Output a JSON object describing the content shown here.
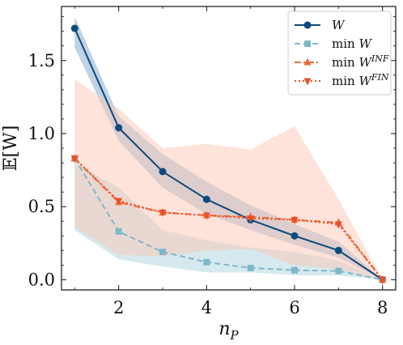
{
  "chart_data": {
    "type": "line",
    "xlabel": "n_P",
    "ylabel": "𝔼[W]",
    "xlim": [
      0.7,
      8.3
    ],
    "ylim": [
      -0.07,
      1.87
    ],
    "x_ticks": [
      2,
      4,
      6,
      8
    ],
    "y_ticks": [
      0.0,
      0.5,
      1.0,
      1.5
    ],
    "x_tick_labels": [
      "2",
      "4",
      "6",
      "8"
    ],
    "y_tick_labels": [
      "0.0",
      "0.5",
      "1.0",
      "1.5"
    ],
    "grid": false,
    "legend_position": "top-right",
    "series": [
      {
        "name": "W",
        "color": "#0d4a7e",
        "marker": "circle",
        "linestyle": "solid",
        "x": [
          1,
          2,
          3,
          4,
          5,
          6,
          7,
          8
        ],
        "y": [
          1.72,
          1.04,
          0.74,
          0.55,
          0.41,
          0.3,
          0.2,
          0.0
        ],
        "band_low": [
          1.59,
          0.95,
          0.63,
          0.45,
          0.34,
          0.24,
          0.15,
          0.0
        ],
        "band_high": [
          1.8,
          1.12,
          0.86,
          0.67,
          0.51,
          0.38,
          0.26,
          0.0
        ],
        "band_color": "#7fa8c9"
      },
      {
        "name": "min W",
        "color": "#7eb8c8",
        "marker": "square",
        "linestyle": "dashed",
        "x": [
          1,
          2,
          3,
          4,
          5,
          6,
          7,
          8
        ],
        "y": [
          0.83,
          0.33,
          0.19,
          0.12,
          0.08,
          0.065,
          0.06,
          0.0
        ],
        "band_low": [
          0.34,
          0.14,
          0.09,
          0.05,
          0.05,
          0.03,
          0.03,
          0.0
        ],
        "band_high": [
          0.8,
          0.63,
          0.34,
          0.27,
          0.22,
          0.19,
          0.13,
          0.0
        ],
        "band_color": "#add3df"
      },
      {
        "name": "min W^INF",
        "color": "#ee6a33",
        "marker": "triangle-up",
        "linestyle": "dashdot",
        "x": [
          1,
          2,
          3,
          4,
          5,
          6,
          7,
          8
        ],
        "y": [
          0.83,
          0.53,
          0.46,
          0.44,
          0.43,
          0.41,
          0.39,
          0.0
        ]
      },
      {
        "name": "min W^FIN",
        "color": "#ea4f2a",
        "marker": "triangle-down",
        "linestyle": "dotted",
        "x": [
          1,
          2,
          3,
          4,
          5,
          6,
          7,
          8
        ],
        "y": [
          0.83,
          0.54,
          0.46,
          0.44,
          0.42,
          0.41,
          0.38,
          0.0
        ],
        "band_low": [
          0.36,
          0.17,
          0.16,
          0.2,
          0.21,
          0.1,
          0.07,
          0.0
        ],
        "band_high": [
          1.37,
          1.17,
          0.9,
          0.93,
          0.89,
          1.05,
          0.55,
          0.0
        ],
        "band_color": "#fbc8b4"
      }
    ]
  },
  "legend": {
    "entries": [
      {
        "base": "W",
        "sup": ""
      },
      {
        "base": "min W",
        "sup": ""
      },
      {
        "base": "min W",
        "sup": "INF"
      },
      {
        "base": "min W",
        "sup": "FIN"
      }
    ]
  }
}
